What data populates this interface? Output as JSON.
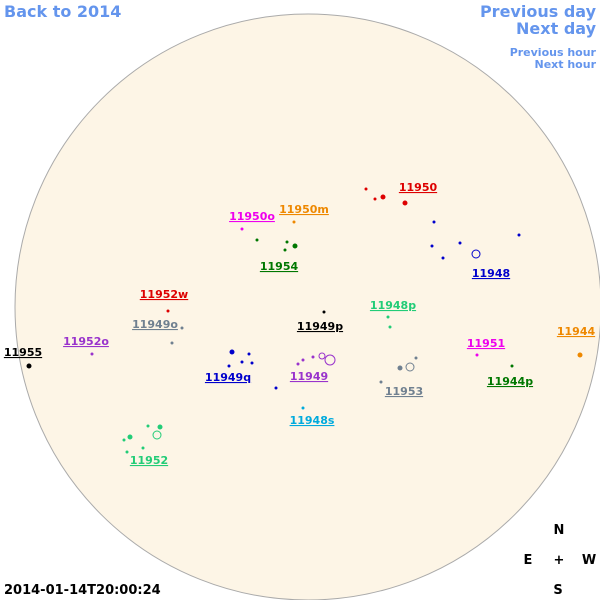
{
  "nav": {
    "back": "Back to 2014",
    "previous_day": "Previous day",
    "next_day": "Next day",
    "previous_hour": "Previous hour",
    "next_hour": "Next hour"
  },
  "regions": [
    {
      "label": "11950",
      "color": "#dd0000"
    },
    {
      "label": "11950o",
      "color": "#ee00ee"
    },
    {
      "label": "11950m",
      "color": "#ee8800"
    },
    {
      "label": "11954",
      "color": "#007700"
    },
    {
      "label": "11948",
      "color": "#0000cc"
    },
    {
      "label": "11952w",
      "color": "#dd0000"
    },
    {
      "label": "11949o",
      "color": "#708090"
    },
    {
      "label": "11948p",
      "color": "#22cc77"
    },
    {
      "label": "11949p",
      "color": "#000000"
    },
    {
      "label": "11944",
      "color": "#ee8800"
    },
    {
      "label": "11955",
      "color": "#000000"
    },
    {
      "label": "11952o",
      "color": "#9933cc"
    },
    {
      "label": "11951",
      "color": "#ee00ee"
    },
    {
      "label": "11949q",
      "color": "#0000cc"
    },
    {
      "label": "11949",
      "color": "#9933cc"
    },
    {
      "label": "11944p",
      "color": "#007700"
    },
    {
      "label": "11953",
      "color": "#708090"
    },
    {
      "label": "11948s",
      "color": "#00aadd"
    },
    {
      "label": "11952",
      "color": "#22cc77"
    }
  ],
  "compass": {
    "north": "N",
    "east": "E",
    "center": "+",
    "west": "W",
    "south": "S"
  },
  "timestamp": "2014-01-14T20:00:24"
}
